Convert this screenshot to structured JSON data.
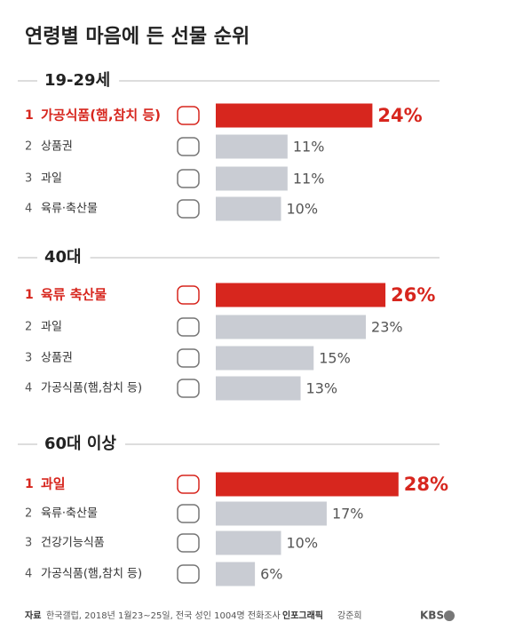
{
  "header": {
    "title": "연령별 마음에 든 선물 순위"
  },
  "chart_data": [
    {
      "type": "bar",
      "title": "19-29세",
      "ranks": [
        1,
        2,
        3,
        4
      ],
      "categories": [
        "가공식품(햄,참치 등)",
        "상품권",
        "과일",
        "육류·축산물"
      ],
      "values": [
        24,
        11,
        11,
        10
      ],
      "value_labels": [
        "24%",
        "11%",
        "11%",
        "10%"
      ],
      "colors": [
        "#d7261e",
        "#c9ccd3",
        "#c9ccd3",
        "#c9ccd3"
      ]
    },
    {
      "type": "bar",
      "title": "40대",
      "ranks": [
        1,
        2,
        3,
        4
      ],
      "categories": [
        "육류 축산물",
        "과일",
        "상품권",
        "가공식품(햄,참치 등)"
      ],
      "values": [
        26,
        23,
        15,
        13
      ],
      "value_labels": [
        "26%",
        "23%",
        "15%",
        "13%"
      ],
      "colors": [
        "#d7261e",
        "#c9ccd3",
        "#c9ccd3",
        "#c9ccd3"
      ]
    },
    {
      "type": "bar",
      "title": "60대 이상",
      "ranks": [
        1,
        2,
        3,
        4
      ],
      "categories": [
        "과일",
        "육류·축산물",
        "건강기능식품",
        "가공식품(햄,참치 등)"
      ],
      "values": [
        28,
        17,
        10,
        6
      ],
      "value_labels": [
        "28%",
        "17%",
        "10%",
        "6%"
      ],
      "colors": [
        "#d7261e",
        "#c9ccd3",
        "#c9ccd3",
        "#c9ccd3"
      ]
    }
  ],
  "footer": {
    "source_label": "자료",
    "source": "한국갤럽, 2018년 1월23~25일, 전국 성인 1004명 전화조사",
    "credit_label": "인포그래픽",
    "credit": "강준희",
    "logo": "KBS"
  }
}
